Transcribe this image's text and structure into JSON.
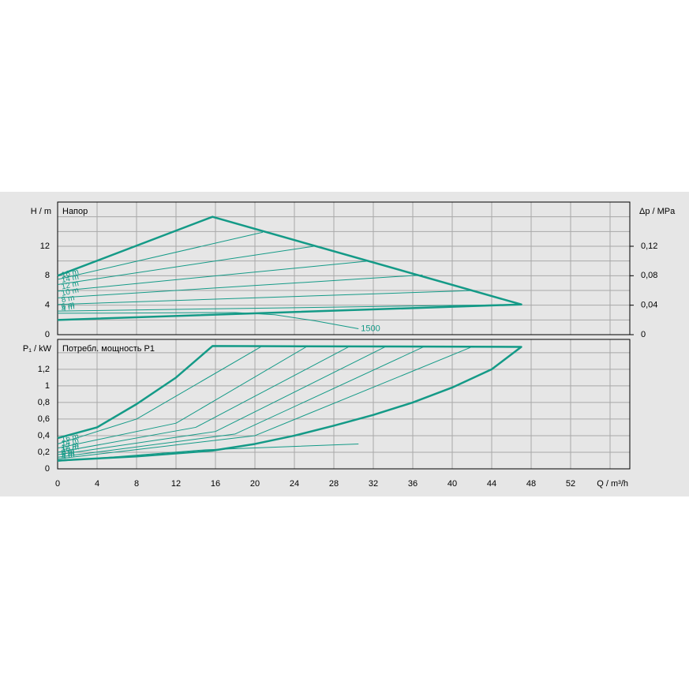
{
  "chart_data": [
    {
      "type": "line",
      "title": "Напор",
      "y_label": "H / m",
      "y2_label": "Δp / MPa",
      "color": "#149a87",
      "xlim": [
        0,
        58
      ],
      "xticks": [
        0,
        4,
        8,
        12,
        16,
        20,
        24,
        28,
        32,
        36,
        40,
        44,
        48,
        52
      ],
      "minor_xticks": [
        56
      ],
      "ylim": [
        0,
        18
      ],
      "yticks": [
        0,
        4,
        8,
        12
      ],
      "minor_yticks": [
        2,
        6,
        10,
        14,
        16
      ],
      "y2lim": [
        0,
        0.18
      ],
      "y2ticks": [
        0,
        {
          "value": 0.04,
          "label": "0,04"
        },
        {
          "value": 0.08,
          "label": "0,08"
        },
        {
          "value": 0.12,
          "label": "0,12"
        }
      ],
      "series": [
        {
          "width": "thick",
          "x": [
            0,
            15.7,
            47,
            0
          ],
          "values": [
            8,
            16,
            4.1,
            2.0
          ]
        },
        {
          "name": "16 m",
          "width": "thin",
          "x": [
            0,
            20.8
          ],
          "values": [
            7.5,
            13.9
          ]
        },
        {
          "name": "14 m",
          "width": "thin",
          "x": [
            0,
            26
          ],
          "values": [
            6.8,
            12.0
          ]
        },
        {
          "name": "12 m",
          "width": "thin",
          "x": [
            0,
            31.6
          ],
          "values": [
            5.9,
            10.0
          ]
        },
        {
          "name": "10 m",
          "width": "thin",
          "x": [
            0,
            37
          ],
          "values": [
            5.0,
            8.1
          ]
        },
        {
          "name": "8 m",
          "width": "thin",
          "x": [
            0,
            42.3
          ],
          "values": [
            4.1,
            6.0
          ]
        },
        {
          "name": "6 m",
          "width": "thin",
          "x": [
            0,
            47
          ],
          "values": [
            3.2,
            4.1
          ]
        },
        {
          "name": "4 m",
          "width": "thin",
          "x": [
            0,
            18
          ],
          "values": [
            2.9,
            3.0
          ]
        },
        {
          "name": "1500",
          "label_at": "end",
          "width": "thin",
          "x": [
            18,
            22,
            26,
            30.5
          ],
          "values": [
            3.0,
            2.7,
            1.9,
            0.8
          ]
        }
      ]
    },
    {
      "type": "line",
      "title": "Потребл. мощность P1",
      "y_label": "P₁ / kW",
      "x_label": "Q / m³/h",
      "color": "#149a87",
      "xlim": [
        0,
        58
      ],
      "xticks": [
        0,
        4,
        8,
        12,
        16,
        20,
        24,
        28,
        32,
        36,
        40,
        44,
        48,
        52
      ],
      "minor_xticks": [
        56
      ],
      "ylim": [
        0,
        1.56
      ],
      "yticks": [
        0,
        {
          "value": 0.2,
          "label": "0,2"
        },
        {
          "value": 0.4,
          "label": "0,4"
        },
        {
          "value": 0.6,
          "label": "0,6"
        },
        {
          "value": 0.8,
          "label": "0,8"
        },
        1,
        {
          "value": 1.2,
          "label": "1,2"
        }
      ],
      "minor_yticks": [
        1.4
      ],
      "series": [
        {
          "width": "thick",
          "x": [
            0,
            4,
            8,
            12,
            15.7,
            47,
            44,
            40,
            36,
            32,
            28,
            24,
            20,
            15.7,
            8,
            0
          ],
          "values": [
            0.37,
            0.5,
            0.78,
            1.1,
            1.48,
            1.47,
            1.2,
            0.98,
            0.8,
            0.65,
            0.52,
            0.4,
            0.3,
            0.22,
            0.15,
            0.1
          ]
        },
        {
          "name": "16 m",
          "width": "thin",
          "x": [
            0,
            8,
            20.6
          ],
          "values": [
            0.3,
            0.6,
            1.47
          ]
        },
        {
          "name": "14 m",
          "width": "thin",
          "x": [
            0,
            12,
            25.2
          ],
          "values": [
            0.25,
            0.55,
            1.47
          ]
        },
        {
          "name": "12 m",
          "width": "thin",
          "x": [
            0,
            14,
            29.5
          ],
          "values": [
            0.2,
            0.5,
            1.47
          ]
        },
        {
          "name": "10 m",
          "width": "thin",
          "x": [
            0,
            16,
            33.2
          ],
          "values": [
            0.17,
            0.45,
            1.47
          ]
        },
        {
          "name": "8 m",
          "width": "thin",
          "x": [
            0,
            18,
            37.1
          ],
          "values": [
            0.14,
            0.42,
            1.47
          ]
        },
        {
          "name": "6 m",
          "width": "thin",
          "x": [
            0,
            20,
            42
          ],
          "values": [
            0.12,
            0.4,
            1.47
          ]
        },
        {
          "name": "4 m",
          "width": "thin",
          "x": [
            0,
            15,
            30.5
          ],
          "values": [
            0.09,
            0.23,
            0.3
          ]
        }
      ]
    }
  ]
}
